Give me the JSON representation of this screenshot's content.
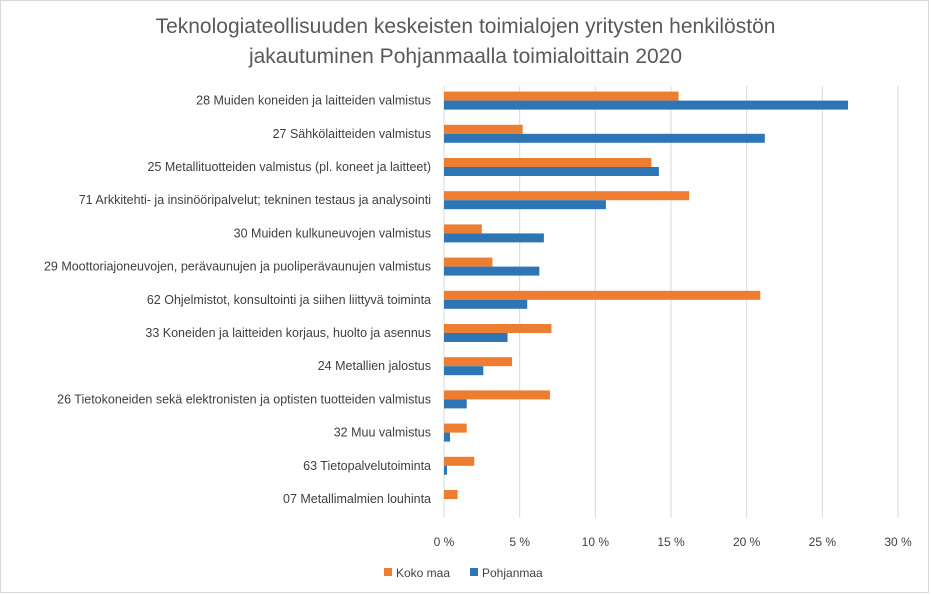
{
  "chart_data": {
    "type": "bar",
    "orientation": "horizontal",
    "title": [
      "Teknologiateollisuuden keskeisten toimialojen yritysten henkilöstön",
      "jakautuminen Pohjanmaalla toimialoittain 2020"
    ],
    "categories": [
      "28 Muiden koneiden ja laitteiden valmistus",
      "27 Sähkölaitteiden valmistus",
      "25 Metallituotteiden valmistus (pl. koneet ja laitteet)",
      "71 Arkkitehti- ja insinööripalvelut; tekninen testaus ja analysointi",
      "30 Muiden kulkuneuvojen valmistus",
      "29 Moottoriajoneuvojen, perävaunujen ja puoliperävaunujen valmistus",
      "62 Ohjelmistot, konsultointi ja siihen liittyvä toiminta",
      "33 Koneiden ja laitteiden korjaus, huolto ja asennus",
      "24 Metallien jalostus",
      "26 Tietokoneiden sekä elektronisten ja optisten tuotteiden valmistus",
      "32 Muu valmistus",
      "63 Tietopalvelutoiminta",
      "07 Metallimalmien louhinta"
    ],
    "series": [
      {
        "name": "Koko maa",
        "color": "#ED7D31",
        "values": [
          15.5,
          5.2,
          13.7,
          16.2,
          2.5,
          3.2,
          20.9,
          7.1,
          4.5,
          7.0,
          1.5,
          2.0,
          0.9
        ]
      },
      {
        "name": "Pohjanmaa",
        "color": "#2E75B6",
        "values": [
          26.7,
          21.2,
          14.2,
          10.7,
          6.6,
          6.3,
          5.5,
          4.2,
          2.6,
          1.5,
          0.4,
          0.2,
          0.0
        ]
      }
    ],
    "xlim": [
      0,
      30
    ],
    "xticks": [
      0,
      5,
      10,
      15,
      20,
      25,
      30
    ],
    "xtick_labels": [
      "0 %",
      "5 %",
      "10 %",
      "15 %",
      "20 %",
      "25 %",
      "30 %"
    ],
    "grid": true,
    "legend_position": "bottom"
  }
}
